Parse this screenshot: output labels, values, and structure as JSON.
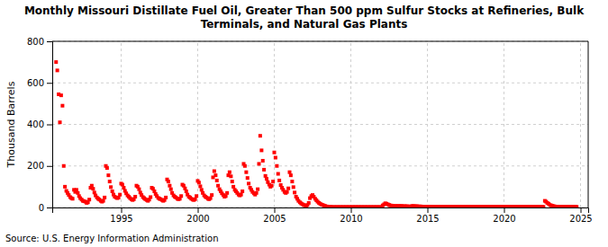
{
  "chart_data": {
    "type": "scatter",
    "title": "Monthly Missouri Distillate Fuel Oil, Greater Than 500 ppm Sulfur Stocks at Refineries, Bulk\nTerminals, and Natural Gas Plants",
    "y_label": "Thousand Barrels",
    "annotations": [
      "Source: U.S. Energy Information Administration"
    ],
    "color": "#FF0000",
    "marker": "square",
    "grid": true,
    "xlim": [
      1990.5,
      2025.5
    ],
    "ylim": [
      0,
      800
    ],
    "xticks": [
      1995,
      2000,
      2005,
      2010,
      2015,
      2020,
      2025
    ],
    "yticks": [
      0,
      200,
      400,
      600,
      800
    ],
    "x": [
      1990.75,
      1990.83,
      1990.92,
      1991.0,
      1991.08,
      1991.17,
      1991.25,
      1991.33,
      1991.42,
      1991.5,
      1991.58,
      1991.67,
      1991.75,
      1991.83,
      1991.92,
      1992.0,
      1992.08,
      1992.17,
      1992.25,
      1992.33,
      1992.42,
      1992.5,
      1992.58,
      1992.67,
      1992.75,
      1992.83,
      1992.92,
      1993.0,
      1993.08,
      1993.17,
      1993.25,
      1993.33,
      1993.42,
      1993.5,
      1993.58,
      1993.67,
      1993.75,
      1993.83,
      1993.92,
      1994.0,
      1994.08,
      1994.17,
      1994.25,
      1994.33,
      1994.42,
      1994.5,
      1994.58,
      1994.67,
      1994.75,
      1994.83,
      1994.92,
      1995.0,
      1995.08,
      1995.17,
      1995.25,
      1995.33,
      1995.42,
      1995.5,
      1995.58,
      1995.67,
      1995.75,
      1995.83,
      1995.92,
      1996.0,
      1996.08,
      1996.17,
      1996.25,
      1996.33,
      1996.42,
      1996.5,
      1996.58,
      1996.67,
      1996.75,
      1996.83,
      1996.92,
      1997.0,
      1997.08,
      1997.17,
      1997.25,
      1997.33,
      1997.42,
      1997.5,
      1997.58,
      1997.67,
      1997.75,
      1997.83,
      1997.92,
      1998.0,
      1998.08,
      1998.17,
      1998.25,
      1998.33,
      1998.42,
      1998.5,
      1998.58,
      1998.67,
      1998.75,
      1998.83,
      1998.92,
      1999.0,
      1999.08,
      1999.17,
      1999.25,
      1999.33,
      1999.42,
      1999.5,
      1999.58,
      1999.67,
      1999.75,
      1999.83,
      1999.92,
      2000.0,
      2000.08,
      2000.17,
      2000.25,
      2000.33,
      2000.42,
      2000.5,
      2000.58,
      2000.67,
      2000.75,
      2000.83,
      2000.92,
      2001.0,
      2001.08,
      2001.17,
      2001.25,
      2001.33,
      2001.42,
      2001.5,
      2001.58,
      2001.67,
      2001.75,
      2001.83,
      2001.92,
      2002.0,
      2002.08,
      2002.17,
      2002.25,
      2002.33,
      2002.42,
      2002.5,
      2002.58,
      2002.67,
      2002.75,
      2002.83,
      2002.92,
      2003.0,
      2003.08,
      2003.17,
      2003.25,
      2003.33,
      2003.42,
      2003.5,
      2003.58,
      2003.67,
      2003.75,
      2003.83,
      2003.92,
      2004.0,
      2004.08,
      2004.17,
      2004.25,
      2004.33,
      2004.42,
      2004.5,
      2004.58,
      2004.67,
      2004.75,
      2004.83,
      2004.92,
      2005.0,
      2005.08,
      2005.17,
      2005.25,
      2005.33,
      2005.42,
      2005.5,
      2005.58,
      2005.67,
      2005.75,
      2005.83,
      2005.92,
      2006.0,
      2006.08,
      2006.17,
      2006.25,
      2006.33,
      2006.42,
      2006.5,
      2006.58,
      2006.67,
      2006.75,
      2006.83,
      2006.92,
      2007.0,
      2007.08,
      2007.17,
      2007.25,
      2007.33,
      2007.42,
      2007.5,
      2007.58,
      2007.67,
      2007.75,
      2007.83,
      2007.92,
      2008.0,
      2008.08,
      2008.17,
      2008.25,
      2008.33,
      2008.42,
      2008.5,
      2008.58,
      2008.67,
      2008.75,
      2008.83,
      2008.92,
      2009.0,
      2009.08,
      2009.17,
      2009.25,
      2009.33,
      2009.42,
      2009.5,
      2009.58,
      2009.67,
      2009.75,
      2009.83,
      2009.92,
      2010.0,
      2010.08,
      2010.17,
      2010.25,
      2010.33,
      2010.42,
      2010.5,
      2010.58,
      2010.67,
      2010.75,
      2010.83,
      2010.92,
      2011.0,
      2011.08,
      2011.17,
      2011.25,
      2011.33,
      2011.42,
      2011.5,
      2011.58,
      2011.67,
      2011.75,
      2011.83,
      2011.92,
      2012.0,
      2012.08,
      2012.17,
      2012.25,
      2012.33,
      2012.42,
      2012.5,
      2012.58,
      2012.67,
      2012.75,
      2012.83,
      2012.92,
      2013.0,
      2013.08,
      2013.17,
      2013.25,
      2013.33,
      2013.42,
      2013.5,
      2013.58,
      2013.67,
      2013.75,
      2013.83,
      2013.92,
      2014.0,
      2014.08,
      2014.17,
      2014.25,
      2014.33,
      2014.42,
      2014.5,
      2014.58,
      2014.67,
      2014.75,
      2014.83,
      2014.92,
      2015.0,
      2015.08,
      2015.17,
      2015.25,
      2015.33,
      2015.42,
      2015.5,
      2015.58,
      2015.67,
      2015.75,
      2015.83,
      2015.92,
      2016.0,
      2016.08,
      2016.17,
      2016.25,
      2016.33,
      2016.42,
      2016.5,
      2016.58,
      2016.67,
      2016.75,
      2016.83,
      2016.92,
      2017.0,
      2017.08,
      2017.17,
      2017.25,
      2017.33,
      2017.42,
      2017.5,
      2017.58,
      2017.67,
      2017.75,
      2017.83,
      2017.92,
      2018.0,
      2018.08,
      2018.17,
      2018.25,
      2018.33,
      2018.42,
      2018.5,
      2018.58,
      2018.67,
      2018.75,
      2018.83,
      2018.92,
      2019.0,
      2019.08,
      2019.17,
      2019.25,
      2019.33,
      2019.42,
      2019.5,
      2019.58,
      2019.67,
      2019.75,
      2019.83,
      2019.92,
      2020.0,
      2020.08,
      2020.17,
      2020.25,
      2020.33,
      2020.42,
      2020.5,
      2020.58,
      2020.67,
      2020.75,
      2020.83,
      2020.92,
      2021.0,
      2021.08,
      2021.17,
      2021.25,
      2021.33,
      2021.42,
      2021.5,
      2021.58,
      2021.67,
      2021.75,
      2021.83,
      2021.92,
      2022.0,
      2022.08,
      2022.17,
      2022.25,
      2022.33,
      2022.42,
      2022.5,
      2022.58,
      2022.67,
      2022.75,
      2022.83,
      2022.92,
      2023.0,
      2023.08,
      2023.17,
      2023.25,
      2023.33,
      2023.42,
      2023.5,
      2023.58,
      2023.67,
      2023.75,
      2023.83,
      2023.92,
      2024.0,
      2024.08,
      2024.17,
      2024.25,
      2024.33,
      2024.42,
      2024.5,
      2024.58,
      2024.67,
      2024.75
    ],
    "values": [
      700,
      660,
      545,
      410,
      540,
      490,
      200,
      100,
      80,
      70,
      60,
      50,
      45,
      42,
      85,
      75,
      85,
      70,
      55,
      45,
      38,
      32,
      30,
      28,
      22,
      25,
      38,
      95,
      105,
      90,
      72,
      58,
      48,
      42,
      38,
      32,
      28,
      32,
      48,
      200,
      190,
      155,
      125,
      98,
      78,
      62,
      52,
      48,
      45,
      48,
      62,
      115,
      110,
      95,
      80,
      68,
      58,
      52,
      45,
      40,
      36,
      40,
      52,
      105,
      100,
      88,
      72,
      60,
      50,
      45,
      40,
      36,
      32,
      38,
      50,
      95,
      90,
      78,
      65,
      55,
      46,
      42,
      40,
      36,
      32,
      36,
      48,
      135,
      125,
      105,
      88,
      70,
      58,
      52,
      48,
      42,
      40,
      42,
      55,
      110,
      105,
      92,
      78,
      62,
      52,
      48,
      42,
      38,
      36,
      40,
      55,
      128,
      120,
      102,
      85,
      70,
      58,
      52,
      48,
      42,
      40,
      45,
      60,
      145,
      175,
      155,
      130,
      105,
      88,
      78,
      68,
      60,
      52,
      55,
      70,
      155,
      170,
      150,
      125,
      100,
      85,
      78,
      70,
      62,
      58,
      62,
      78,
      210,
      200,
      170,
      142,
      115,
      95,
      85,
      75,
      68,
      62,
      70,
      88,
      210,
      345,
      275,
      225,
      182,
      152,
      138,
      122,
      110,
      100,
      105,
      125,
      265,
      240,
      200,
      162,
      130,
      108,
      95,
      85,
      75,
      70,
      75,
      92,
      170,
      155,
      125,
      98,
      72,
      52,
      42,
      32,
      25,
      20,
      16,
      12,
      10,
      8,
      12,
      22,
      45,
      55,
      60,
      52,
      42,
      35,
      28,
      22,
      18,
      14,
      12,
      9,
      7,
      5,
      4,
      3,
      3,
      2,
      2,
      2,
      2,
      2,
      2,
      2,
      2,
      2,
      2,
      2,
      2,
      2,
      2,
      2,
      2,
      2,
      2,
      2,
      2,
      2,
      2,
      2,
      2,
      2,
      2,
      2,
      2,
      2,
      2,
      2,
      2,
      2,
      2,
      2,
      2,
      2,
      2,
      2,
      2,
      10,
      15,
      20,
      18,
      15,
      12,
      10,
      9,
      8,
      7,
      7,
      7,
      7,
      7,
      7,
      7,
      6,
      6,
      6,
      6,
      5,
      5,
      5,
      7,
      7,
      6,
      6,
      6,
      5,
      5,
      5,
      4,
      4,
      4,
      4,
      4,
      4,
      4,
      4,
      3,
      3,
      3,
      3,
      3,
      3,
      3,
      3,
      3,
      3,
      3,
      3,
      3,
      3,
      3,
      3,
      3,
      3,
      3,
      3,
      3,
      3,
      3,
      3,
      3,
      3,
      3,
      3,
      3,
      3,
      3,
      3,
      3,
      3,
      3,
      3,
      3,
      3,
      3,
      3,
      3,
      3,
      3,
      3,
      3,
      3,
      3,
      3,
      3,
      3,
      3,
      3,
      3,
      3,
      3,
      3,
      3,
      3,
      3,
      3,
      3,
      3,
      3,
      3,
      3,
      3,
      3,
      3,
      3,
      3,
      3,
      3,
      3,
      3,
      3,
      3,
      3,
      3,
      3,
      3,
      3,
      3,
      3,
      3,
      3,
      3,
      3,
      3,
      32,
      28,
      22,
      18,
      12,
      10,
      8,
      6,
      5,
      4,
      4,
      3,
      3,
      3,
      3,
      3,
      3,
      3,
      3,
      3,
      3,
      3,
      3,
      3,
      3,
      3
    ]
  }
}
